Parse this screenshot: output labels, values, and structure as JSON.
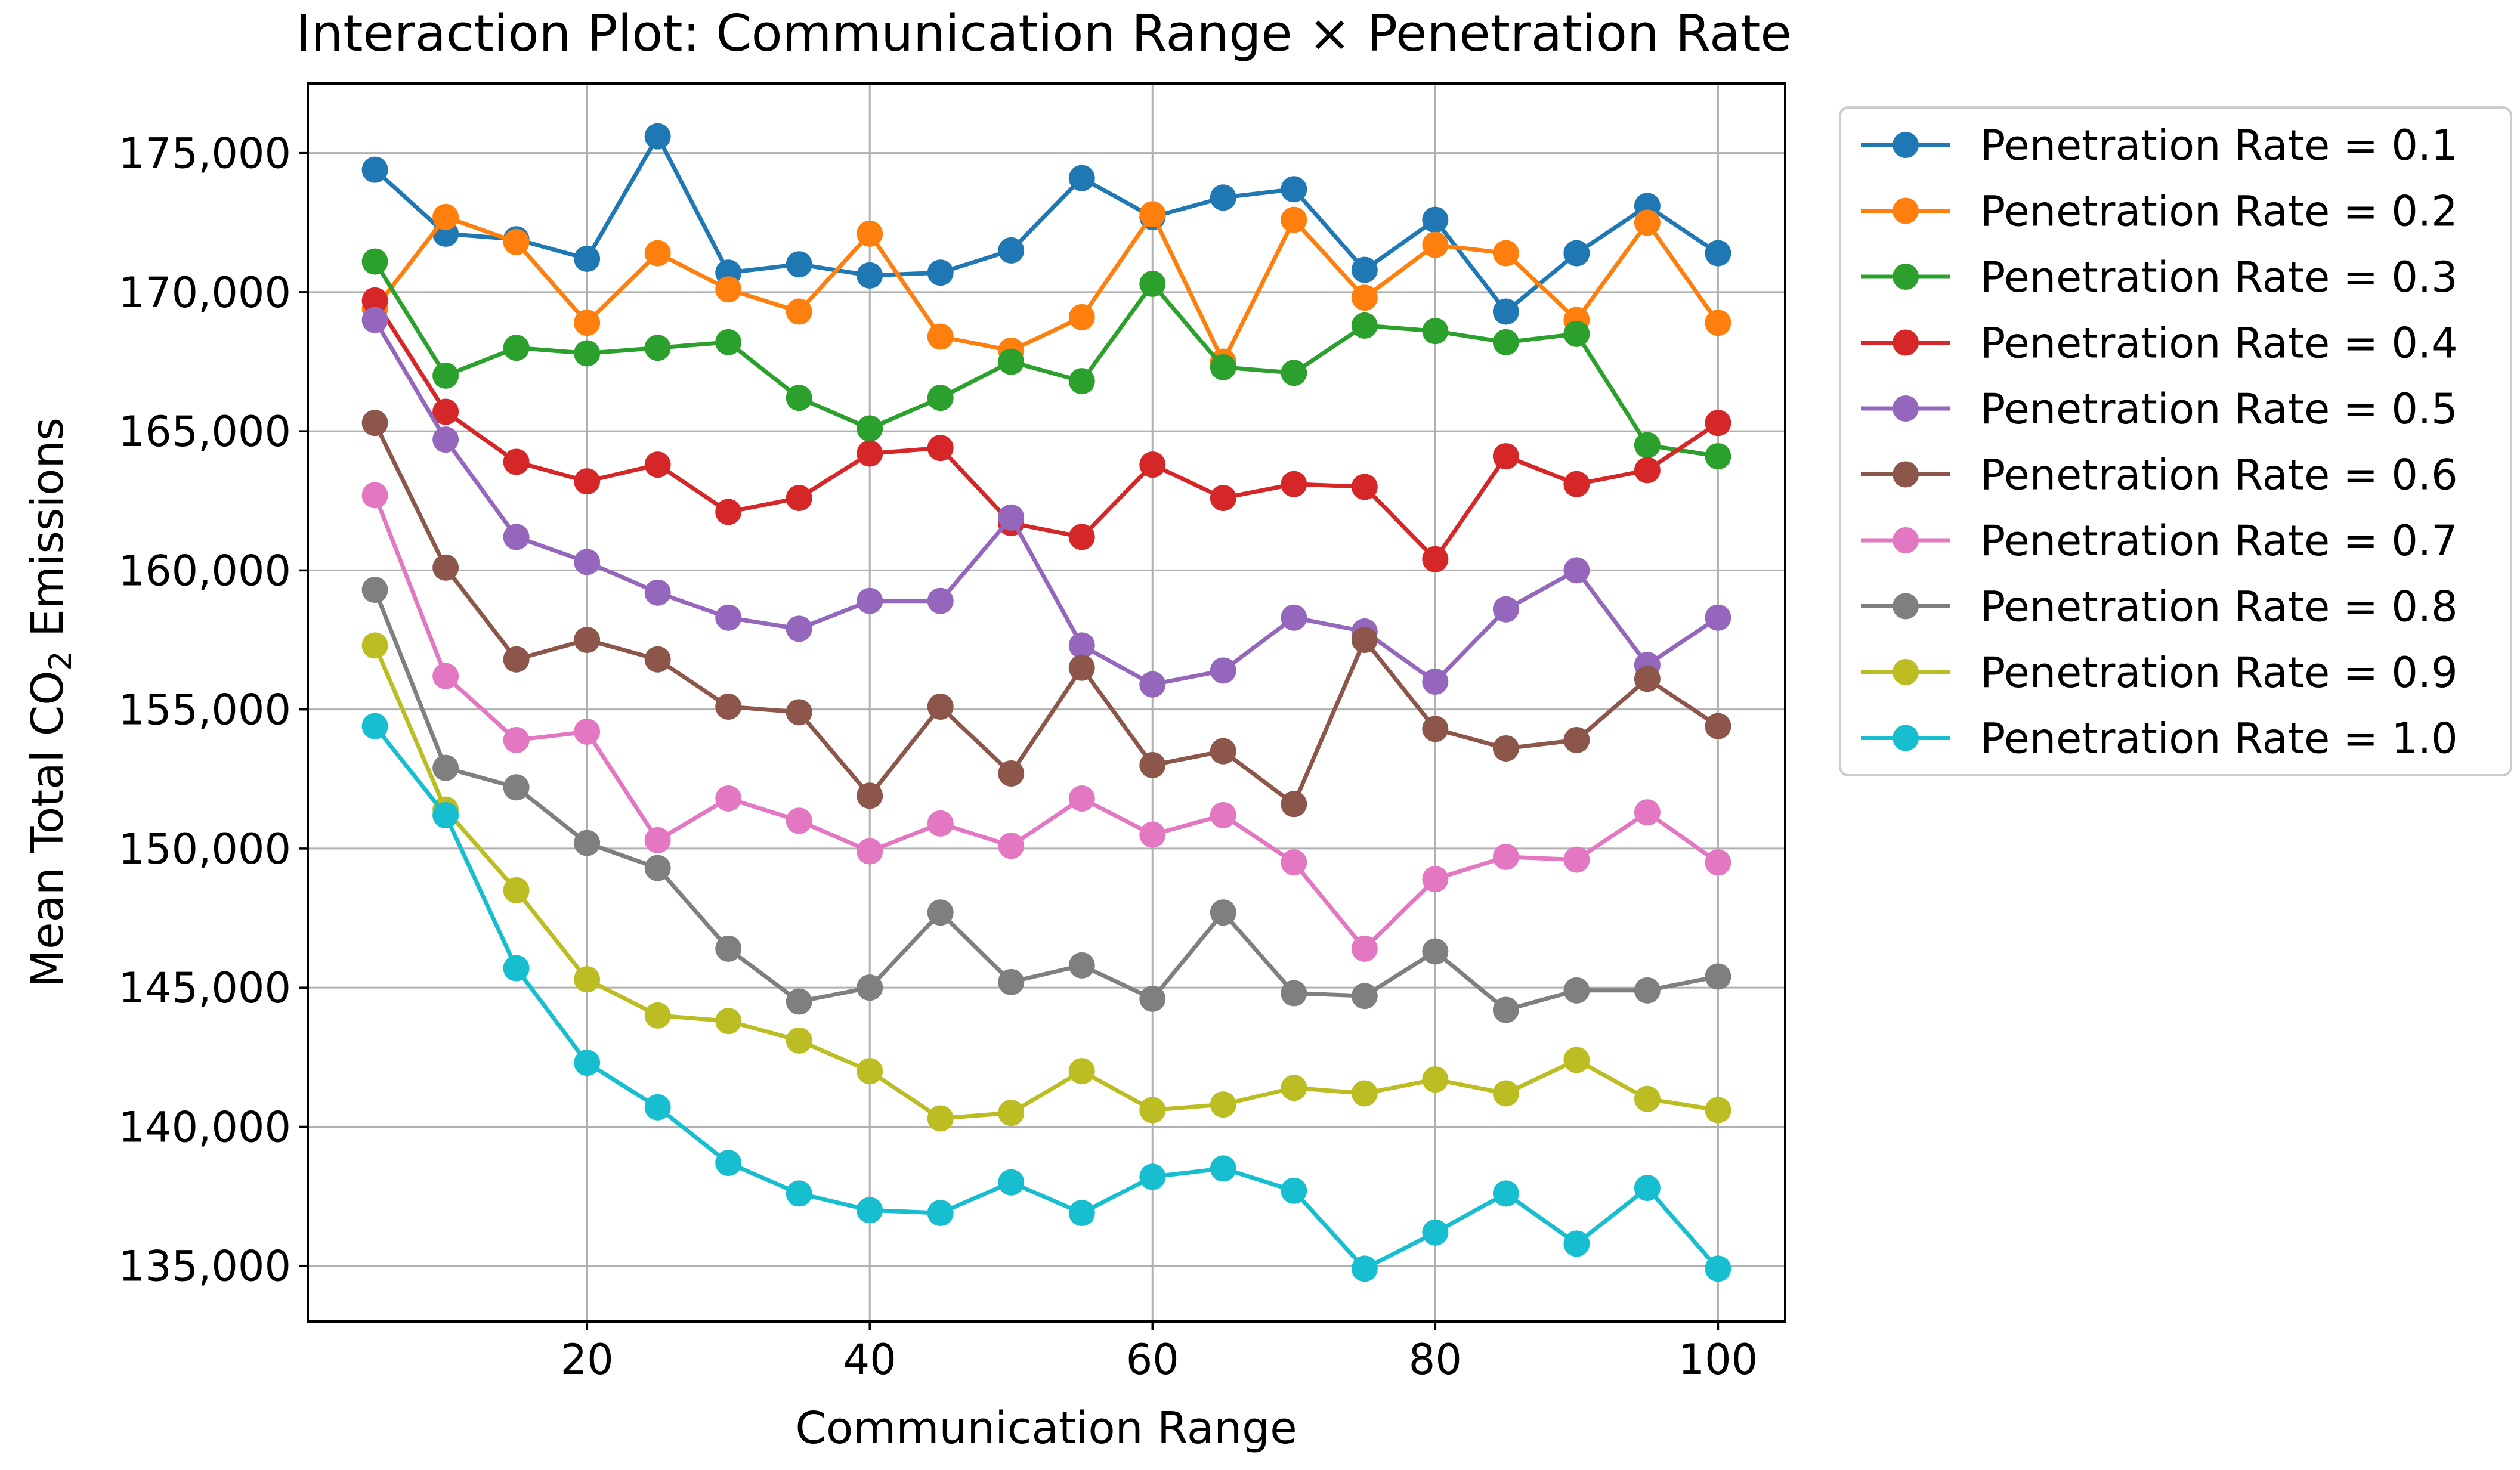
{
  "chart_data": {
    "type": "line",
    "title": "Interaction Plot: Communication Range × Penetration Rate",
    "xlabel": "Communication Range",
    "ylabel": {
      "main": "Mean Total CO",
      "subscript": "2",
      "suffix": " Emissions"
    },
    "xlim": [
      0.25,
      104.75
    ],
    "ylim": [
      133000,
      177500
    ],
    "xticks": [
      20,
      40,
      60,
      80,
      100
    ],
    "xtick_labels": [
      "20",
      "40",
      "60",
      "80",
      "100"
    ],
    "yticks": [
      135000,
      140000,
      145000,
      150000,
      155000,
      160000,
      165000,
      170000,
      175000
    ],
    "ytick_labels": [
      "135,000",
      "140,000",
      "145,000",
      "150,000",
      "155,000",
      "160,000",
      "165,000",
      "170,000",
      "175,000"
    ],
    "grid": true,
    "legend_position": "outside-right-top",
    "x": [
      5,
      10,
      15,
      20,
      25,
      30,
      35,
      40,
      45,
      50,
      55,
      60,
      65,
      70,
      75,
      80,
      85,
      90,
      95,
      100
    ],
    "series": [
      {
        "name": "Penetration Rate = 0.1",
        "color": "#1f77b4",
        "values": [
          174400,
          172100,
          171900,
          171200,
          175600,
          170700,
          171000,
          170600,
          170700,
          171500,
          174100,
          172700,
          173400,
          173700,
          170800,
          172600,
          169300,
          171400,
          173100,
          171400
        ]
      },
      {
        "name": "Penetration Rate = 0.2",
        "color": "#ff7f0e",
        "values": [
          169400,
          172700,
          171800,
          168900,
          171400,
          170100,
          169300,
          172100,
          168400,
          167900,
          169100,
          172800,
          167500,
          172600,
          169800,
          171700,
          171400,
          169000,
          172500,
          168900
        ]
      },
      {
        "name": "Penetration Rate = 0.3",
        "color": "#2ca02c",
        "values": [
          171100,
          167000,
          168000,
          167800,
          168000,
          168200,
          166200,
          165100,
          166200,
          167500,
          166800,
          170300,
          167300,
          167100,
          168800,
          168600,
          168200,
          168500,
          164500,
          164100
        ]
      },
      {
        "name": "Penetration Rate = 0.4",
        "color": "#d62728",
        "values": [
          169700,
          165700,
          163900,
          163200,
          163800,
          162100,
          162600,
          164200,
          164400,
          161700,
          161200,
          163800,
          162600,
          163100,
          163000,
          160400,
          164100,
          163100,
          163600,
          165300
        ]
      },
      {
        "name": "Penetration Rate = 0.5",
        "color": "#9467bd",
        "values": [
          169000,
          164700,
          161200,
          160300,
          159200,
          158300,
          157900,
          158900,
          158900,
          161900,
          157300,
          155900,
          156400,
          158300,
          157800,
          156000,
          158600,
          160000,
          156600,
          158300
        ]
      },
      {
        "name": "Penetration Rate = 0.6",
        "color": "#8c564b",
        "values": [
          165300,
          160100,
          156800,
          157500,
          156800,
          155100,
          154900,
          151900,
          155100,
          152700,
          156500,
          153000,
          153500,
          151600,
          157500,
          154300,
          153600,
          153900,
          156100,
          154400
        ]
      },
      {
        "name": "Penetration Rate = 0.7",
        "color": "#e377c2",
        "values": [
          162700,
          156200,
          153900,
          154200,
          150300,
          151800,
          151000,
          149900,
          150900,
          150100,
          151800,
          150500,
          151200,
          149500,
          146400,
          148900,
          149700,
          149600,
          151300,
          149500
        ]
      },
      {
        "name": "Penetration Rate = 0.8",
        "color": "#7f7f7f",
        "values": [
          159300,
          152900,
          152200,
          150200,
          149300,
          146400,
          144500,
          145000,
          147700,
          145200,
          145800,
          144600,
          147700,
          144800,
          144700,
          146300,
          144200,
          144900,
          144900,
          145400
        ]
      },
      {
        "name": "Penetration Rate = 0.9",
        "color": "#bcbd22",
        "values": [
          157300,
          151400,
          148500,
          145300,
          144000,
          143800,
          143100,
          142000,
          140300,
          140500,
          142000,
          140600,
          140800,
          141400,
          141200,
          141700,
          141200,
          142400,
          141000,
          140600
        ]
      },
      {
        "name": "Penetration Rate = 1.0",
        "color": "#17becf",
        "values": [
          154400,
          151200,
          145700,
          142300,
          140700,
          138700,
          137600,
          137000,
          136900,
          138000,
          136900,
          138200,
          138500,
          137700,
          134900,
          136200,
          137600,
          135800,
          137800,
          134900
        ]
      }
    ]
  }
}
